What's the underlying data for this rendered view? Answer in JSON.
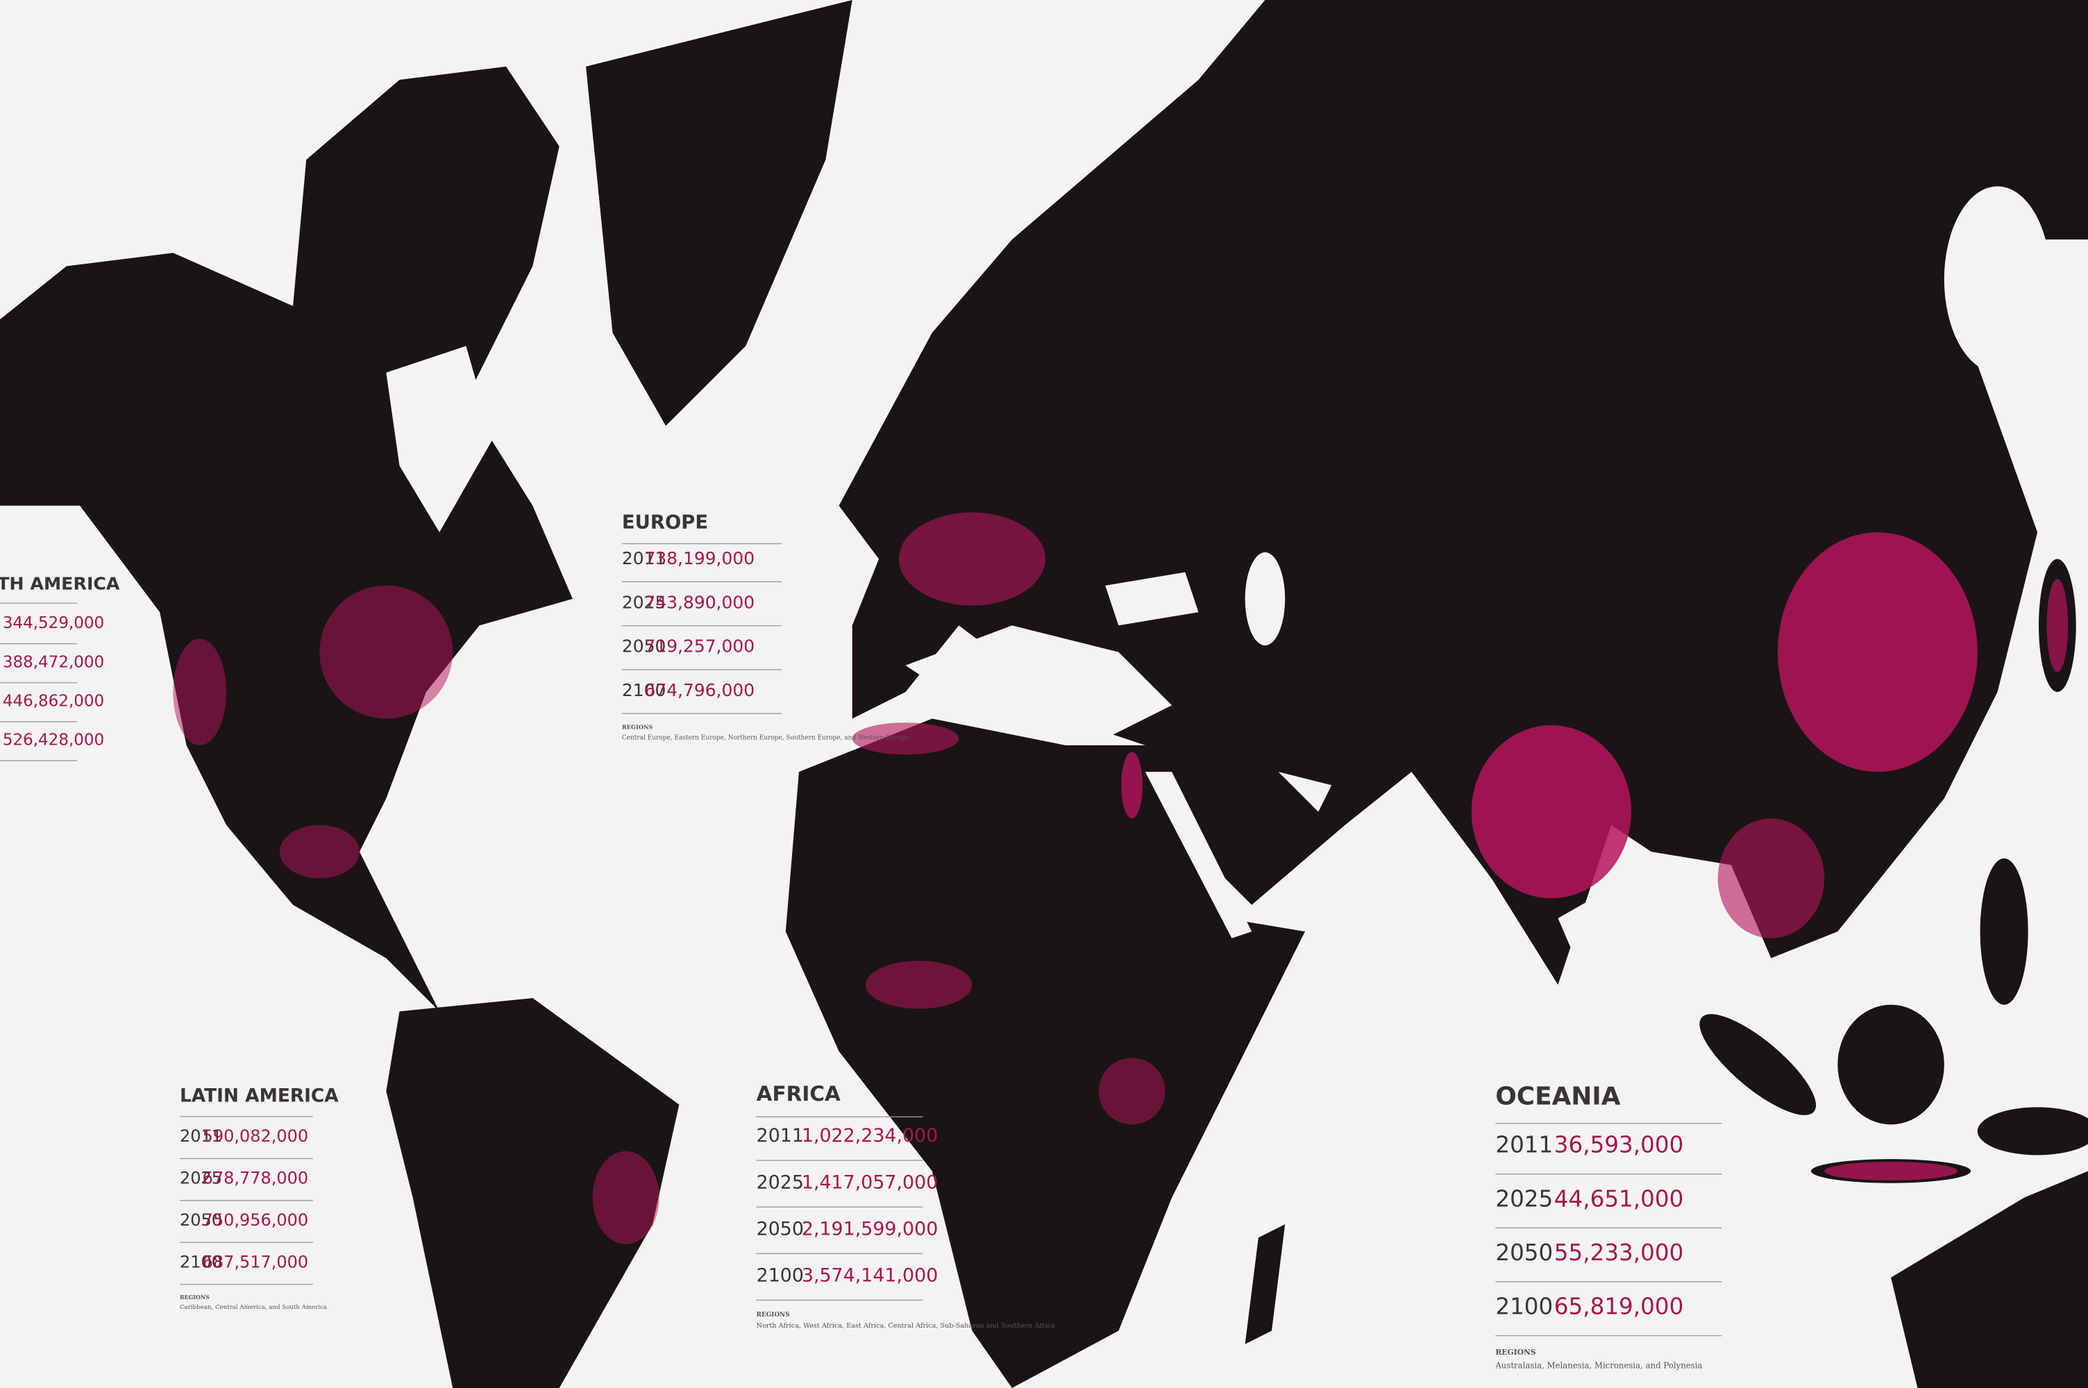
{
  "panels": [
    {
      "title": "TH AMERICA",
      "rows": [
        {
          "value": "344,529,000"
        },
        {
          "value": "388,472,000"
        },
        {
          "value": "446,862,000"
        },
        {
          "value": "526,428,000"
        }
      ]
    },
    {
      "title": "EUROPE",
      "rows": [
        {
          "year": "2011",
          "value": "738,199,000"
        },
        {
          "year": "2025",
          "value": "743,890,000"
        },
        {
          "year": "2050",
          "value": "719,257,000"
        },
        {
          "year": "2100",
          "value": "674,796,000"
        }
      ],
      "regions_label": "REGIONS",
      "regions": "Central Europe, Eastern Europe, Northern Europe, Southern Europe, and Western Europe"
    },
    {
      "title": "LATIN AMERICA",
      "rows": [
        {
          "year": "2011",
          "value": "590,082,000"
        },
        {
          "year": "2025",
          "value": "678,778,000"
        },
        {
          "year": "2050",
          "value": "750,956,000"
        },
        {
          "year": "2100",
          "value": "687,517,000"
        }
      ],
      "regions_label": "REGIONS",
      "regions": "Caribbean, Central America, and South America"
    },
    {
      "title": "AFRICA",
      "rows": [
        {
          "year": "2011",
          "value": "1,022,234,000"
        },
        {
          "year": "2025",
          "value": "1,417,057,000"
        },
        {
          "year": "2050",
          "value": "2,191,599,000"
        },
        {
          "year": "2100",
          "value": "3,574,141,000"
        }
      ],
      "regions_label": "REGIONS",
      "regions": "North Africa, West Africa, East Africa, Central Africa, Sub-Saharan and Southern Africa"
    },
    {
      "title": "OCEANIA",
      "rows": [
        {
          "year": "2011",
          "value": "36,593,000"
        },
        {
          "year": "2025",
          "value": "44,651,000"
        },
        {
          "year": "2050",
          "value": "55,233,000"
        },
        {
          "year": "2100",
          "value": "65,819,000"
        }
      ],
      "regions_label": "REGIONS",
      "regions": "Australasia, Melanesia, Micronesia, and Polynesia"
    }
  ]
}
